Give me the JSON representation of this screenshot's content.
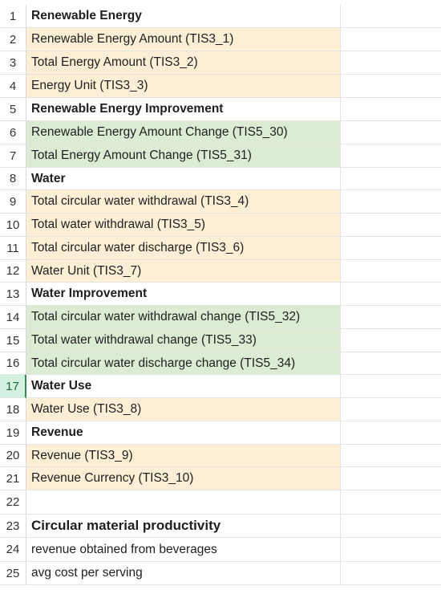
{
  "sheet": {
    "rows": [
      {
        "num": "1",
        "text": "Renewable Energy",
        "style": "bold",
        "fill": "none"
      },
      {
        "num": "2",
        "text": "Renewable Energy Amount (TIS3_1)",
        "style": "normal",
        "fill": "tan"
      },
      {
        "num": "3",
        "text": "Total Energy Amount (TIS3_2)",
        "style": "normal",
        "fill": "tan"
      },
      {
        "num": "4",
        "text": "Energy Unit (TIS3_3)",
        "style": "normal",
        "fill": "tan"
      },
      {
        "num": "5",
        "text": "Renewable Energy Improvement",
        "style": "bold",
        "fill": "none"
      },
      {
        "num": "6",
        "text": "Renewable Energy Amount Change (TIS5_30)",
        "style": "normal",
        "fill": "green"
      },
      {
        "num": "7",
        "text": "Total Energy Amount Change (TIS5_31)",
        "style": "normal",
        "fill": "green"
      },
      {
        "num": "8",
        "text": "Water",
        "style": "bold",
        "fill": "none"
      },
      {
        "num": "9",
        "text": "Total circular water withdrawal (TIS3_4)",
        "style": "normal",
        "fill": "tan"
      },
      {
        "num": "10",
        "text": "Total water withdrawal (TIS3_5)",
        "style": "normal",
        "fill": "tan"
      },
      {
        "num": "11",
        "text": "Total circular water discharge (TIS3_6)",
        "style": "normal",
        "fill": "tan"
      },
      {
        "num": "12",
        "text": "Water Unit (TIS3_7)",
        "style": "normal",
        "fill": "tan"
      },
      {
        "num": "13",
        "text": "Water Improvement",
        "style": "bold",
        "fill": "none"
      },
      {
        "num": "14",
        "text": "Total circular water withdrawal change (TIS5_32)",
        "style": "normal",
        "fill": "green"
      },
      {
        "num": "15",
        "text": "Total water withdrawal change (TIS5_33)",
        "style": "normal",
        "fill": "green"
      },
      {
        "num": "16",
        "text": "Total circular water discharge change (TIS5_34)",
        "style": "normal",
        "fill": "green"
      },
      {
        "num": "17",
        "text": "Water Use",
        "style": "bold",
        "fill": "none"
      },
      {
        "num": "18",
        "text": "Water Use (TIS3_8)",
        "style": "normal",
        "fill": "tan"
      },
      {
        "num": "19",
        "text": "Revenue",
        "style": "bold",
        "fill": "none"
      },
      {
        "num": "20",
        "text": "Revenue (TIS3_9)",
        "style": "normal",
        "fill": "tan"
      },
      {
        "num": "21",
        "text": "Revenue Currency (TIS3_10)",
        "style": "normal",
        "fill": "tan"
      },
      {
        "num": "22",
        "text": "",
        "style": "normal",
        "fill": "none"
      },
      {
        "num": "23",
        "text": "Circular material productivity",
        "style": "bold-large",
        "fill": "none"
      },
      {
        "num": "24",
        "text": "revenue obtained from beverages",
        "style": "normal",
        "fill": "none"
      },
      {
        "num": "25",
        "text": "avg cost per serving",
        "style": "normal",
        "fill": "none"
      }
    ],
    "selected_row": "17",
    "colors": {
      "tan": "#fcefd6",
      "green": "#dcebd4",
      "selection": "#2f8f52"
    }
  }
}
